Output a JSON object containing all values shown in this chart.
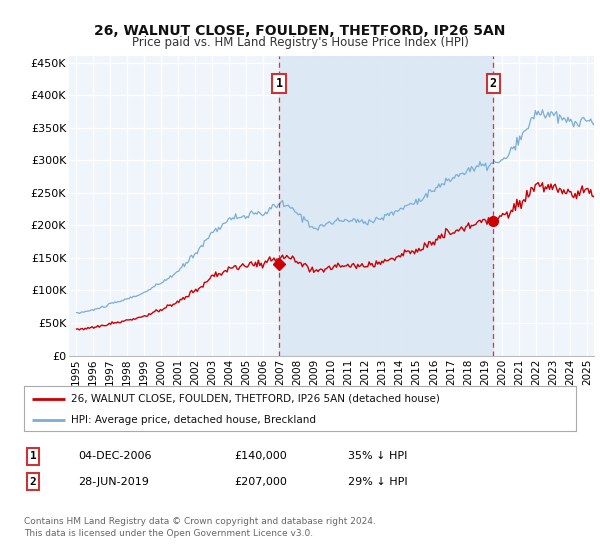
{
  "title": "26, WALNUT CLOSE, FOULDEN, THETFORD, IP26 5AN",
  "subtitle": "Price paid vs. HM Land Registry's House Price Index (HPI)",
  "ylim": [
    0,
    460000
  ],
  "yticks": [
    0,
    50000,
    100000,
    150000,
    200000,
    250000,
    300000,
    350000,
    400000,
    450000
  ],
  "ytick_labels": [
    "£0",
    "£50K",
    "£100K",
    "£150K",
    "£200K",
    "£250K",
    "£300K",
    "£350K",
    "£400K",
    "£450K"
  ],
  "bg_color": "#dce8f5",
  "fill_between_color": "#dce8f5",
  "outer_bg_color": "#f0f4fb",
  "grid_color": "#ffffff",
  "hpi_color": "#7aaed6",
  "price_color": "#cc0000",
  "sale1_date": 2006.92,
  "sale1_price": 140000,
  "sale2_date": 2019.49,
  "sale2_price": 207000,
  "legend_line1": "26, WALNUT CLOSE, FOULDEN, THETFORD, IP26 5AN (detached house)",
  "legend_line2": "HPI: Average price, detached house, Breckland",
  "footnote_line1": "Contains HM Land Registry data © Crown copyright and database right 2024.",
  "footnote_line2": "This data is licensed under the Open Government Licence v3.0.",
  "table_row1_date": "04-DEC-2006",
  "table_row1_price": "£140,000",
  "table_row1_hpi": "35% ↓ HPI",
  "table_row2_date": "28-JUN-2019",
  "table_row2_price": "£207,000",
  "table_row2_hpi": "29% ↓ HPI",
  "xtick_years": [
    1995,
    1996,
    1997,
    1998,
    1999,
    2000,
    2001,
    2002,
    2003,
    2004,
    2005,
    2006,
    2007,
    2008,
    2009,
    2010,
    2011,
    2012,
    2013,
    2014,
    2015,
    2016,
    2017,
    2018,
    2019,
    2020,
    2021,
    2022,
    2023,
    2024,
    2025
  ]
}
